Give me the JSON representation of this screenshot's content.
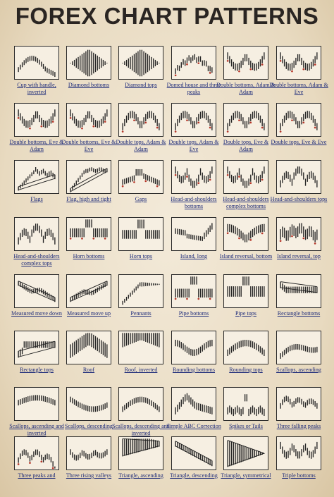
{
  "title": "FOREX CHART PATTERNS",
  "patterns": [
    {
      "label": "Cup with handle, inverted",
      "shape": "cupInv"
    },
    {
      "label": "Diamond bottoms",
      "shape": "diamond"
    },
    {
      "label": "Diamond tops",
      "shape": "diamond"
    },
    {
      "label": "Domed house and three peaks",
      "shape": "dome"
    },
    {
      "label": "Double bottoms, Adam & Adam",
      "shape": "dbl"
    },
    {
      "label": "Double bottoms, Adam & Eve",
      "shape": "dbl"
    },
    {
      "label": "Double bottoms, Eve & Adam",
      "shape": "dbl"
    },
    {
      "label": "Double bottoms, Eve & Eve",
      "shape": "dbl"
    },
    {
      "label": "Double tops, Adam & Adam",
      "shape": "dtop"
    },
    {
      "label": "Double tops, Adam & Eve",
      "shape": "dtop"
    },
    {
      "label": "Double tops, Eve & Adam",
      "shape": "dtop"
    },
    {
      "label": "Double tops, Eve & Eve",
      "shape": "dtop"
    },
    {
      "label": "Flags",
      "shape": "flag"
    },
    {
      "label": "Flag, high and tight",
      "shape": "flagHT"
    },
    {
      "label": "Gaps",
      "shape": "gaps"
    },
    {
      "label": "Head-and-shoulders bottoms",
      "shape": "hsb"
    },
    {
      "label": "Head-and-shoulders complex bottoms",
      "shape": "hsb"
    },
    {
      "label": "Head-and-shoulders tops",
      "shape": "hst"
    },
    {
      "label": "Head-and-shoulders complex tops",
      "shape": "hst"
    },
    {
      "label": "Horn bottoms",
      "shape": "hornB"
    },
    {
      "label": "Horn tops",
      "shape": "hornT"
    },
    {
      "label": "Island, long",
      "shape": "island"
    },
    {
      "label": "Island reversal, bottom",
      "shape": "islandB"
    },
    {
      "label": "Island reversal, top",
      "shape": "islandT"
    },
    {
      "label": "Measured move down",
      "shape": "mmDown"
    },
    {
      "label": "Measured move up",
      "shape": "mmUp"
    },
    {
      "label": "Pennants",
      "shape": "pennant"
    },
    {
      "label": "Pipe bottoms",
      "shape": "pipeB"
    },
    {
      "label": "Pipe tops",
      "shape": "pipeT"
    },
    {
      "label": "Rectangle bottoms",
      "shape": "rectB"
    },
    {
      "label": "Rectangle tops",
      "shape": "rectT"
    },
    {
      "label": "Roof",
      "shape": "roof"
    },
    {
      "label": "Roof, inverted",
      "shape": "roofInv"
    },
    {
      "label": "Rounding bottoms",
      "shape": "roundB"
    },
    {
      "label": "Rounding tops",
      "shape": "roundT"
    },
    {
      "label": "Scallops, ascending",
      "shape": "scalAsc"
    },
    {
      "label": "Scallops, ascending and inverted",
      "shape": "scalAscInv"
    },
    {
      "label": "Scallops, descending",
      "shape": "scalDesc"
    },
    {
      "label": "Scallops, descending and inverted",
      "shape": "scalDescInv"
    },
    {
      "label": "Simple ABC Correction",
      "shape": "abc"
    },
    {
      "label": "Spikes or Tails",
      "shape": "spikes"
    },
    {
      "label": "Three falling peaks",
      "shape": "threeFall"
    },
    {
      "label": "Three peaks and",
      "shape": "threePeaks"
    },
    {
      "label": "Three rising valleys",
      "shape": "threeRise"
    },
    {
      "label": "Triangle, ascending",
      "shape": "triAsc"
    },
    {
      "label": "Triangle, descending",
      "shape": "triDesc"
    },
    {
      "label": "Triangle, symmetrical",
      "shape": "triSym"
    },
    {
      "label": "Triple bottoms",
      "shape": "tripleB"
    }
  ]
}
